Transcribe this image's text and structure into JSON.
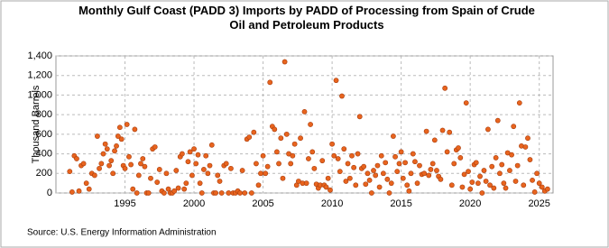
{
  "chart_data": {
    "type": "scatter",
    "title": "Monthly Gulf Coast (PADD 3) Imports by PADD of Processing from Spain of Crude Oil and Petroleum Products",
    "ylabel": "Thousand Barrels",
    "source": "Source: U.S. Energy Information Administration",
    "color": "#e8641e",
    "grid": true,
    "xlim": [
      1990,
      2026
    ],
    "xticks": [
      1995,
      2000,
      2005,
      2010,
      2015,
      2020,
      2025
    ],
    "ylim": [
      0,
      1400
    ],
    "yticks": [
      0,
      200,
      400,
      600,
      800,
      {
        "value": 1000,
        "label": "1,000"
      },
      {
        "value": 1200,
        "label": "1,200"
      },
      {
        "value": 1400,
        "label": "1,400"
      }
    ],
    "x": [
      1991,
      1991.17,
      1991.33,
      1991.5,
      1991.67,
      1991.83,
      1992,
      1992.2,
      1992.4,
      1992.6,
      1992.8,
      1993,
      1993.14,
      1993.29,
      1993.43,
      1993.57,
      1993.71,
      1993.86,
      1994,
      1994.13,
      1994.25,
      1994.38,
      1994.5,
      1994.63,
      1994.75,
      1994.88,
      1995,
      1995.14,
      1995.29,
      1995.43,
      1995.57,
      1995.71,
      1995.86,
      1996,
      1996.14,
      1996.29,
      1996.43,
      1996.57,
      1996.71,
      1996.86,
      1997,
      1997.17,
      1997.33,
      1997.5,
      1997.67,
      1997.83,
      1998,
      1998.14,
      1998.29,
      1998.43,
      1998.57,
      1998.71,
      1998.86,
      1999,
      1999.14,
      1999.29,
      1999.43,
      1999.57,
      1999.71,
      1999.86,
      2000,
      2000.14,
      2000.29,
      2000.43,
      2000.57,
      2000.71,
      2000.86,
      2001,
      2001.14,
      2001.29,
      2001.43,
      2001.57,
      2001.71,
      2001.86,
      2002,
      2002.17,
      2002.33,
      2002.5,
      2002.67,
      2002.83,
      2003,
      2003.17,
      2003.33,
      2003.5,
      2003.67,
      2003.83,
      2004,
      2004.17,
      2004.33,
      2004.5,
      2004.67,
      2004.83,
      2005,
      2005.17,
      2005.33,
      2005.5,
      2005.67,
      2005.83,
      2006,
      2006.14,
      2006.29,
      2006.43,
      2006.57,
      2006.71,
      2006.86,
      2007,
      2007.14,
      2007.29,
      2007.43,
      2007.57,
      2007.71,
      2007.86,
      2008,
      2008.14,
      2008.29,
      2008.43,
      2008.57,
      2008.71,
      2008.86,
      2009,
      2009.14,
      2009.29,
      2009.43,
      2009.57,
      2009.71,
      2009.86,
      2010,
      2010.14,
      2010.29,
      2010.43,
      2010.57,
      2010.71,
      2010.86,
      2011,
      2011.14,
      2011.29,
      2011.43,
      2011.57,
      2011.71,
      2011.86,
      2012,
      2012.14,
      2012.29,
      2012.43,
      2012.57,
      2012.71,
      2012.86,
      2013,
      2013.14,
      2013.29,
      2013.43,
      2013.57,
      2013.71,
      2013.86,
      2014,
      2014.14,
      2014.29,
      2014.43,
      2014.57,
      2014.71,
      2014.86,
      2015,
      2015.14,
      2015.29,
      2015.43,
      2015.57,
      2015.71,
      2015.86,
      2016,
      2016.17,
      2016.33,
      2016.5,
      2016.67,
      2016.83,
      2017,
      2017.14,
      2017.29,
      2017.43,
      2017.57,
      2017.71,
      2017.86,
      2018,
      2018.17,
      2018.33,
      2018.5,
      2018.67,
      2018.83,
      2019,
      2019.14,
      2019.29,
      2019.43,
      2019.57,
      2019.71,
      2019.86,
      2020,
      2020.14,
      2020.29,
      2020.43,
      2020.57,
      2020.71,
      2020.86,
      2021,
      2021.14,
      2021.29,
      2021.43,
      2021.57,
      2021.71,
      2021.86,
      2022,
      2022.14,
      2022.29,
      2022.43,
      2022.57,
      2022.71,
      2022.86,
      2023,
      2023.14,
      2023.29,
      2023.43,
      2023.57,
      2023.71,
      2023.86,
      2024,
      2024.17,
      2024.33,
      2024.5,
      2024.67,
      2024.83,
      2025,
      2025.2,
      2025.4,
      2025.6
    ],
    "values": [
      220,
      10,
      380,
      350,
      20,
      280,
      300,
      100,
      40,
      200,
      180,
      580,
      250,
      300,
      400,
      500,
      450,
      280,
      330,
      200,
      430,
      480,
      580,
      670,
      550,
      280,
      250,
      700,
      370,
      290,
      40,
      650,
      0,
      180,
      300,
      350,
      270,
      0,
      0,
      150,
      450,
      470,
      110,
      240,
      20,
      0,
      200,
      40,
      0,
      0,
      20,
      230,
      50,
      370,
      400,
      40,
      100,
      320,
      420,
      180,
      450,
      300,
      390,
      100,
      0,
      240,
      380,
      200,
      280,
      490,
      0,
      0,
      180,
      120,
      0,
      280,
      300,
      0,
      250,
      0,
      0,
      20,
      0,
      230,
      0,
      550,
      570,
      0,
      620,
      300,
      80,
      200,
      380,
      200,
      270,
      1130,
      680,
      650,
      420,
      300,
      560,
      150,
      1340,
      600,
      400,
      300,
      380,
      500,
      80,
      120,
      560,
      100,
      830,
      100,
      350,
      700,
      420,
      250,
      90,
      50,
      80,
      330,
      80,
      60,
      150,
      30,
      500,
      380,
      1150,
      350,
      220,
      990,
      450,
      120,
      300,
      150,
      380,
      260,
      80,
      400,
      780,
      250,
      270,
      90,
      200,
      130,
      0,
      230,
      180,
      280,
      60,
      380,
      200,
      310,
      140,
      0,
      100,
      580,
      370,
      220,
      300,
      420,
      150,
      310,
      80,
      20,
      200,
      400,
      320,
      100,
      280,
      190,
      200,
      630,
      180,
      240,
      300,
      540,
      230,
      170,
      140,
      640,
      1070,
      420,
      620,
      80,
      300,
      440,
      460,
      360,
      60,
      190,
      920,
      220,
      40,
      110,
      290,
      310,
      100,
      170,
      0,
      230,
      120,
      650,
      80,
      270,
      50,
      360,
      740,
      200,
      290,
      100,
      50,
      410,
      230,
      390,
      680,
      120,
      280,
      920,
      480,
      80,
      470,
      560,
      340,
      130,
      10,
      200,
      100,
      60,
      20,
      40
    ]
  }
}
